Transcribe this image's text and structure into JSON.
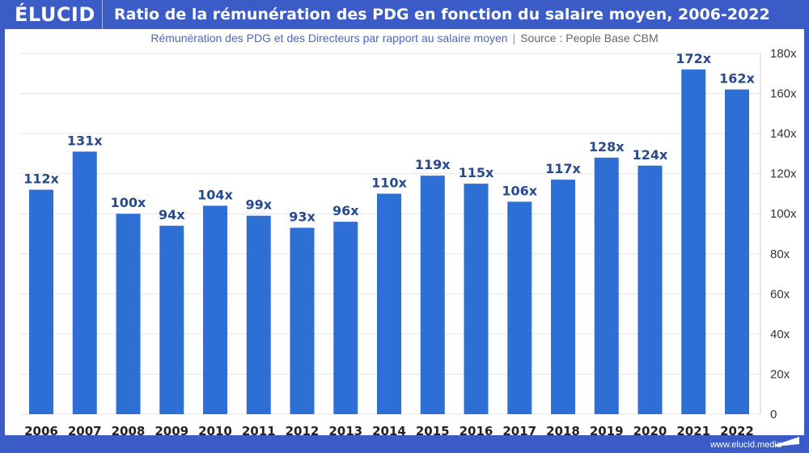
{
  "brand": {
    "logo": "ÉLUCID",
    "website": "www.elucid.media"
  },
  "colors": {
    "header": "#3b5cc6",
    "bar": "#2e6fd6",
    "label": "#274a8f"
  },
  "chart_data": {
    "type": "bar",
    "title": "Ratio de la rémunération des PDG en fonction du salaire moyen, 2006-2022",
    "subtitle": "Rémunération des PDG et des Directeurs par rapport au salaire moyen",
    "source": "Source : People Base CBM",
    "categories": [
      "2006",
      "2007",
      "2008",
      "2009",
      "2010",
      "2011",
      "2012",
      "2013",
      "2014",
      "2015",
      "2016",
      "2017",
      "2018",
      "2019",
      "2020",
      "2021",
      "2022"
    ],
    "values": [
      112,
      131,
      100,
      94,
      104,
      99,
      93,
      96,
      110,
      119,
      115,
      106,
      117,
      128,
      124,
      172,
      162
    ],
    "data_labels": [
      "112x",
      "131x",
      "100x",
      "94x",
      "104x",
      "99x",
      "93x",
      "96x",
      "110x",
      "119x",
      "115x",
      "106x",
      "117x",
      "128x",
      "124x",
      "172x",
      "162x"
    ],
    "ylim": [
      0,
      180
    ],
    "yticks": [
      0,
      20,
      40,
      60,
      80,
      100,
      120,
      140,
      160,
      180
    ],
    "ytick_labels": [
      "0",
      "20x",
      "40x",
      "60x",
      "80x",
      "100x",
      "120x",
      "140x",
      "160x",
      "180x"
    ],
    "y_axis_position": "right",
    "grid": true,
    "xlabel": "",
    "ylabel": ""
  }
}
